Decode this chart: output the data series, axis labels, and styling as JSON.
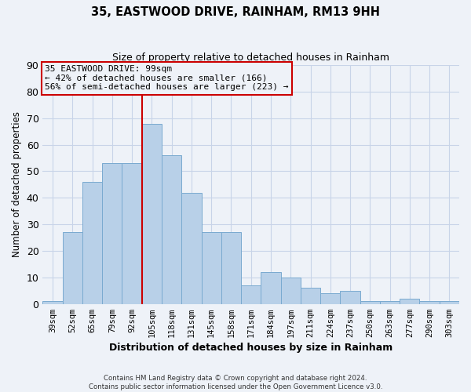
{
  "title": "35, EASTWOOD DRIVE, RAINHAM, RM13 9HH",
  "subtitle": "Size of property relative to detached houses in Rainham",
  "xlabel": "Distribution of detached houses by size in Rainham",
  "ylabel": "Number of detached properties",
  "bar_labels": [
    "39sqm",
    "52sqm",
    "65sqm",
    "79sqm",
    "92sqm",
    "105sqm",
    "118sqm",
    "131sqm",
    "145sqm",
    "158sqm",
    "171sqm",
    "184sqm",
    "197sqm",
    "211sqm",
    "224sqm",
    "237sqm",
    "250sqm",
    "263sqm",
    "277sqm",
    "290sqm",
    "303sqm"
  ],
  "bar_heights": [
    1,
    27,
    46,
    53,
    53,
    68,
    56,
    42,
    27,
    27,
    7,
    12,
    10,
    6,
    4,
    5,
    1,
    1,
    2,
    1,
    1
  ],
  "bar_color": "#b8d0e8",
  "bar_edge_color": "#7aaad0",
  "bar_edge_width": 0.7,
  "vline_color": "#cc0000",
  "annotation_title": "35 EASTWOOD DRIVE: 99sqm",
  "annotation_line1": "← 42% of detached houses are smaller (166)",
  "annotation_line2": "56% of semi-detached houses are larger (223) →",
  "annotation_box_edge_color": "#cc0000",
  "ylim": [
    0,
    90
  ],
  "yticks": [
    0,
    10,
    20,
    30,
    40,
    50,
    60,
    70,
    80,
    90
  ],
  "grid_color": "#c8d4e8",
  "bg_color": "#eef2f8",
  "footer1": "Contains HM Land Registry data © Crown copyright and database right 2024.",
  "footer2": "Contains public sector information licensed under the Open Government Licence v3.0."
}
